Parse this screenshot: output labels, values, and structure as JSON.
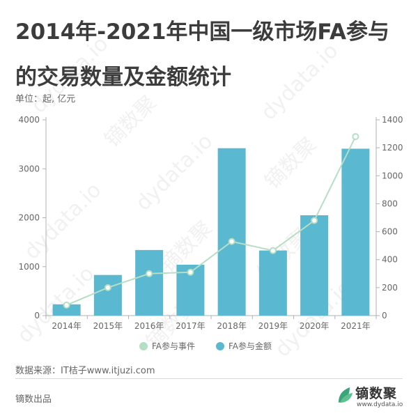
{
  "title": "2014年-2021年中国一级市场FA参与的交易数量及金额统计",
  "unit_label": "单位：起, 亿元",
  "source": "数据来源：IT桔子www.itjuzi.com",
  "producer": "镝数出品",
  "brand": {
    "name": "镝数聚",
    "url": "www.dydata.io"
  },
  "watermark": {
    "latin": "dydata.io",
    "chinese": "镝数聚"
  },
  "colors": {
    "bar": "#5bb8d1",
    "line": "#b5dfc4",
    "axis": "#b0b0b0",
    "text": "#666666"
  },
  "chart_data": {
    "type": "bar",
    "categories": [
      "2014年",
      "2015年",
      "2016年",
      "2017年",
      "2018年",
      "2019年",
      "2020年",
      "2021年"
    ],
    "series": [
      {
        "name": "FA参与事件",
        "type": "line",
        "axis": "right",
        "values": [
          75,
          200,
          300,
          310,
          530,
          465,
          680,
          1280
        ]
      },
      {
        "name": "FA参与金额",
        "type": "bar",
        "axis": "left",
        "values": [
          230,
          830,
          1340,
          1040,
          3420,
          1330,
          2050,
          3410
        ]
      }
    ],
    "y_left": {
      "min": 0,
      "max": 4000,
      "ticks": [
        0,
        1000,
        2000,
        3000,
        4000
      ]
    },
    "y_right": {
      "min": 0,
      "max": 1400,
      "ticks": [
        0,
        200,
        400,
        600,
        800,
        1000,
        1200,
        1400
      ]
    },
    "legend": "bottom",
    "grid": false
  }
}
